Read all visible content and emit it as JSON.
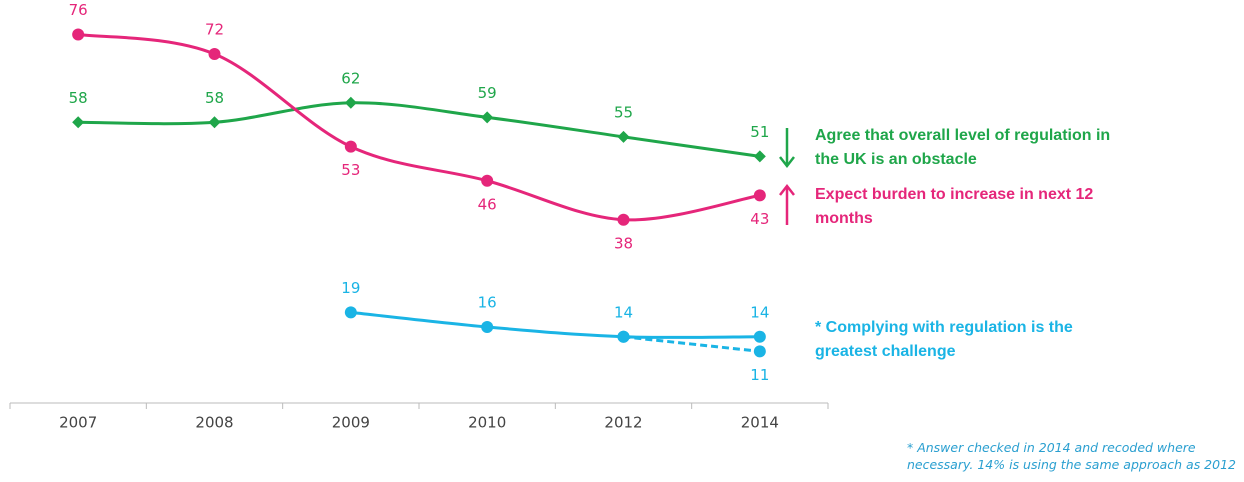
{
  "chart_data": {
    "type": "line",
    "categories": [
      "2007",
      "2008",
      "2009",
      "2010",
      "2012",
      "2014"
    ],
    "ylim": [
      0,
      80
    ],
    "series": [
      {
        "name": "Agree that overall level of regulation in the UK is an obstacle",
        "color": "#1fa64a",
        "marker": "diamond",
        "values": [
          58,
          58,
          62,
          59,
          55,
          51
        ]
      },
      {
        "name": "Expect burden to increase in next 12 months",
        "color": "#e5267a",
        "marker": "circle",
        "values": [
          76,
          72,
          53,
          46,
          38,
          43
        ]
      },
      {
        "name": "* Complying with regulation is the greatest challenge",
        "color": "#1ab4e5",
        "marker": "circle",
        "values": [
          null,
          null,
          19,
          16,
          14,
          14
        ]
      },
      {
        "color": "#1ab4e5",
        "marker": "circle",
        "dashed": true,
        "values": [
          null,
          null,
          null,
          null,
          14,
          11
        ]
      }
    ],
    "footnote": [
      "* Answer checked in 2014 and recoded where",
      "necessary.  14% is using the same approach as 2012"
    ]
  }
}
